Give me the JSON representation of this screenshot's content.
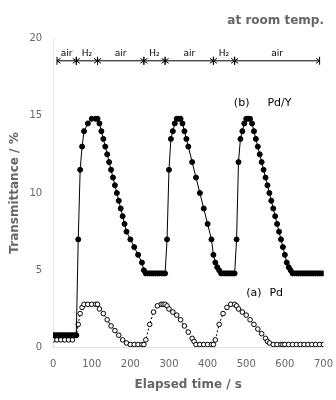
{
  "chart_data": {
    "type": "line",
    "title": "at room temp.",
    "x_label": "Elapsed time / s",
    "y_label": "Transmittance / %",
    "xlim": [
      0,
      700
    ],
    "ylim": [
      0,
      20
    ],
    "xticks": [
      0,
      100,
      200,
      300,
      400,
      500,
      600,
      700
    ],
    "yticks": [
      0,
      5,
      10,
      15,
      20
    ],
    "grid": false,
    "series": [
      {
        "color": "#000000",
        "marker": "filled_circle",
        "line_style": "solid",
        "x": [
          0,
          5,
          10,
          15,
          20,
          25,
          30,
          35,
          40,
          45,
          50,
          55,
          60,
          65,
          70,
          75,
          80,
          90,
          100,
          110,
          115,
          120,
          125,
          130,
          135,
          140,
          145,
          150,
          155,
          160,
          165,
          170,
          175,
          180,
          185,
          190,
          200,
          210,
          220,
          230,
          235,
          240,
          245,
          250,
          255,
          260,
          265,
          270,
          275,
          280,
          285,
          290,
          295,
          300,
          305,
          310,
          315,
          320,
          325,
          330,
          335,
          340,
          345,
          350,
          360,
          370,
          380,
          390,
          400,
          410,
          415,
          420,
          425,
          430,
          435,
          440,
          445,
          450,
          455,
          460,
          465,
          470,
          475,
          480,
          485,
          490,
          495,
          500,
          505,
          510,
          515,
          520,
          525,
          530,
          535,
          540,
          545,
          550,
          555,
          560,
          565,
          570,
          575,
          580,
          585,
          590,
          595,
          600,
          605,
          610,
          615,
          620,
          625,
          630,
          635,
          640,
          645,
          650,
          655,
          660,
          665,
          670,
          675,
          680,
          685,
          690,
          695,
          700
        ],
        "values": [
          0.8,
          0.8,
          0.8,
          0.8,
          0.8,
          0.8,
          0.8,
          0.8,
          0.8,
          0.8,
          0.8,
          0.8,
          0.8,
          7.0,
          11.5,
          13.0,
          14.0,
          14.5,
          14.8,
          14.8,
          14.8,
          14.5,
          14.0,
          13.5,
          13.0,
          12.5,
          12.0,
          11.5,
          11.0,
          10.5,
          10.0,
          9.5,
          9.0,
          8.5,
          8.0,
          7.5,
          7.0,
          6.5,
          6.0,
          5.5,
          5.0,
          4.8,
          4.8,
          4.8,
          4.8,
          4.8,
          4.8,
          4.8,
          4.8,
          4.8,
          4.8,
          4.8,
          7.0,
          11.5,
          13.5,
          14.0,
          14.5,
          14.8,
          14.8,
          14.8,
          14.5,
          14.0,
          13.5,
          13.0,
          12.0,
          11.0,
          10.0,
          9.0,
          8.0,
          7.0,
          6.0,
          5.5,
          5.2,
          5.0,
          4.8,
          4.8,
          4.8,
          4.8,
          4.8,
          4.8,
          4.8,
          4.8,
          7.0,
          12.0,
          13.5,
          14.0,
          14.5,
          14.8,
          14.8,
          14.8,
          14.5,
          14.0,
          13.5,
          13.0,
          12.5,
          12.0,
          11.5,
          11.0,
          10.5,
          10.0,
          9.5,
          9.0,
          8.5,
          8.0,
          7.5,
          7.0,
          6.5,
          6.0,
          5.5,
          5.2,
          5.0,
          4.8,
          4.8,
          4.8,
          4.8,
          4.8,
          4.8,
          4.8,
          4.8,
          4.8,
          4.8,
          4.8,
          4.8,
          4.8,
          4.8,
          4.8,
          4.8,
          4.8
        ]
      },
      {
        "color": "#000000",
        "marker": "open_circle",
        "line_style": "dotted",
        "x": [
          0,
          10,
          20,
          30,
          40,
          50,
          60,
          65,
          70,
          75,
          80,
          90,
          100,
          110,
          115,
          120,
          130,
          140,
          150,
          160,
          170,
          180,
          190,
          200,
          210,
          220,
          230,
          235,
          240,
          250,
          260,
          270,
          280,
          285,
          290,
          295,
          300,
          310,
          320,
          330,
          340,
          350,
          360,
          365,
          370,
          380,
          390,
          400,
          410,
          415,
          420,
          430,
          440,
          450,
          460,
          470,
          475,
          480,
          490,
          500,
          510,
          520,
          530,
          540,
          550,
          555,
          560,
          570,
          580,
          590,
          595,
          600,
          610,
          620,
          630,
          640,
          650,
          660,
          670,
          680,
          690,
          700
        ],
        "values": [
          0.5,
          0.5,
          0.5,
          0.5,
          0.5,
          0.5,
          0.8,
          1.5,
          2.2,
          2.6,
          2.8,
          2.8,
          2.8,
          2.8,
          2.8,
          2.5,
          2.2,
          1.8,
          1.4,
          1.1,
          0.8,
          0.5,
          0.3,
          0.2,
          0.2,
          0.2,
          0.2,
          0.2,
          0.5,
          1.5,
          2.3,
          2.7,
          2.8,
          2.8,
          2.8,
          2.7,
          2.5,
          2.3,
          2.1,
          1.8,
          1.4,
          1.0,
          0.6,
          0.4,
          0.2,
          0.2,
          0.2,
          0.2,
          0.2,
          0.2,
          0.5,
          1.5,
          2.2,
          2.6,
          2.8,
          2.8,
          2.7,
          2.5,
          2.3,
          2.1,
          1.8,
          1.5,
          1.2,
          0.9,
          0.6,
          0.4,
          0.3,
          0.2,
          0.2,
          0.2,
          0.2,
          0.2,
          0.2,
          0.2,
          0.2,
          0.2,
          0.2,
          0.2,
          0.2,
          0.2,
          0.2,
          0.2
        ]
      }
    ],
    "arrows": [
      {
        "label": "air",
        "x0": 10,
        "x1": 60,
        "y": 18.55
      },
      {
        "label": "H₂",
        "x0": 60,
        "x1": 115,
        "y": 18.55
      },
      {
        "label": "air",
        "x0": 115,
        "x1": 235,
        "y": 18.55
      },
      {
        "label": "H₂",
        "x0": 235,
        "x1": 290,
        "y": 18.55
      },
      {
        "label": "air",
        "x0": 290,
        "x1": 415,
        "y": 18.55
      },
      {
        "label": "H₂",
        "x0": 415,
        "x1": 470,
        "y": 18.55
      },
      {
        "label": "air",
        "x0": 470,
        "x1": 690,
        "y": 18.55
      }
    ],
    "annotations": [
      {
        "text": "(a)",
        "x": 500,
        "y": 3.5
      },
      {
        "text": "Pd",
        "x": 560,
        "y": 3.5
      },
      {
        "text": "(b)",
        "x": 468,
        "y": 15.8
      },
      {
        "text": "Pd/Y",
        "x": 555,
        "y": 15.8
      }
    ]
  }
}
